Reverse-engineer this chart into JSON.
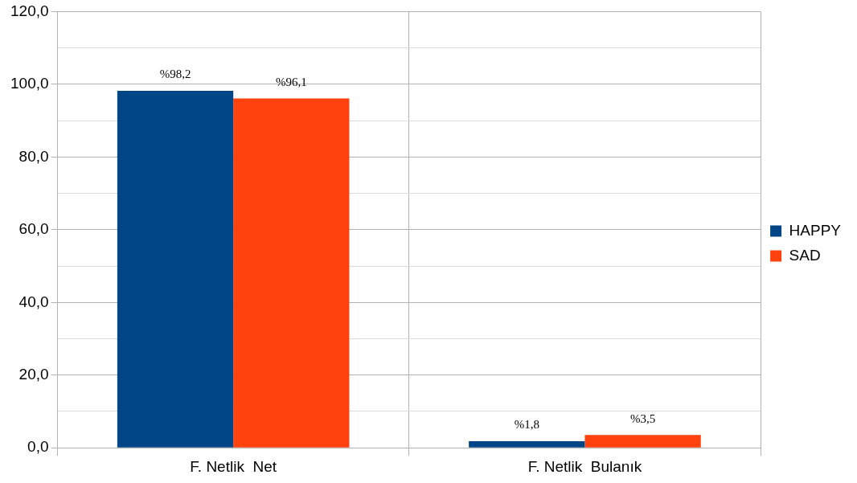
{
  "chart_data": {
    "type": "bar",
    "categories": [
      "F. Netlik  Net",
      "F. Netlik  Bulanık"
    ],
    "series": [
      {
        "name": "HAPPY",
        "color": "#004586",
        "values": [
          98.2,
          1.8
        ],
        "value_labels": [
          "%98,2",
          "%1,8"
        ]
      },
      {
        "name": "SAD",
        "color": "#ff420e",
        "values": [
          96.1,
          3.5
        ],
        "value_labels": [
          "%96,1",
          "%3,5"
        ]
      }
    ],
    "ylim": [
      0,
      120
    ],
    "yticks": [
      {
        "value": 0,
        "label": "0,0"
      },
      {
        "value": 10,
        "label": null
      },
      {
        "value": 20,
        "label": "20,0"
      },
      {
        "value": 30,
        "label": null
      },
      {
        "value": 40,
        "label": "40,0"
      },
      {
        "value": 50,
        "label": null
      },
      {
        "value": 60,
        "label": "60,0"
      },
      {
        "value": 70,
        "label": null
      },
      {
        "value": 80,
        "label": "80,0"
      },
      {
        "value": 90,
        "label": null
      },
      {
        "value": 100,
        "label": "100,0"
      },
      {
        "value": 110,
        "label": null
      },
      {
        "value": 120,
        "label": "120,0"
      }
    ],
    "grid": true,
    "legend": "right"
  }
}
